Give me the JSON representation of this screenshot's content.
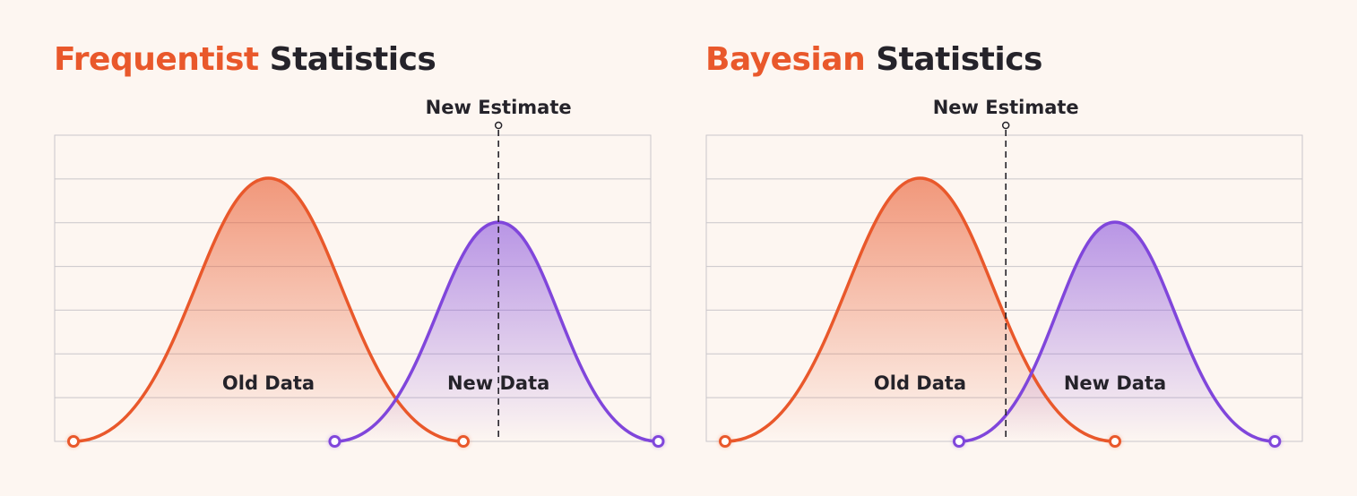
{
  "panels": [
    {
      "title_highlight": "Frequentist",
      "title_rest": "Statistics",
      "estimate_label": "New Estimate",
      "curves": [
        {
          "label": "Old Data",
          "role": "old",
          "start": 0,
          "peak": 0.5,
          "end": 1,
          "height": 1.0
        },
        {
          "label": "New Data",
          "role": "new",
          "start": 0.67,
          "peak": 1.09,
          "end": 1.5,
          "height": 0.833
        }
      ],
      "estimate_position": 1.09
    },
    {
      "title_highlight": "Bayesian",
      "title_rest": "Statistics",
      "estimate_label": "New Estimate",
      "curves": [
        {
          "label": "Old Data",
          "role": "old",
          "start": 0,
          "peak": 0.5,
          "end": 1,
          "height": 1.0
        },
        {
          "label": "New Data",
          "role": "new",
          "start": 0.6,
          "peak": 1.0,
          "end": 1.41,
          "height": 0.833
        }
      ],
      "estimate_position": 0.72
    }
  ],
  "colors": {
    "old": "#e9582b",
    "new": "#8046db",
    "text": "#25232a",
    "grid": "#c9c6ca",
    "background": "#fdf6f1"
  }
}
